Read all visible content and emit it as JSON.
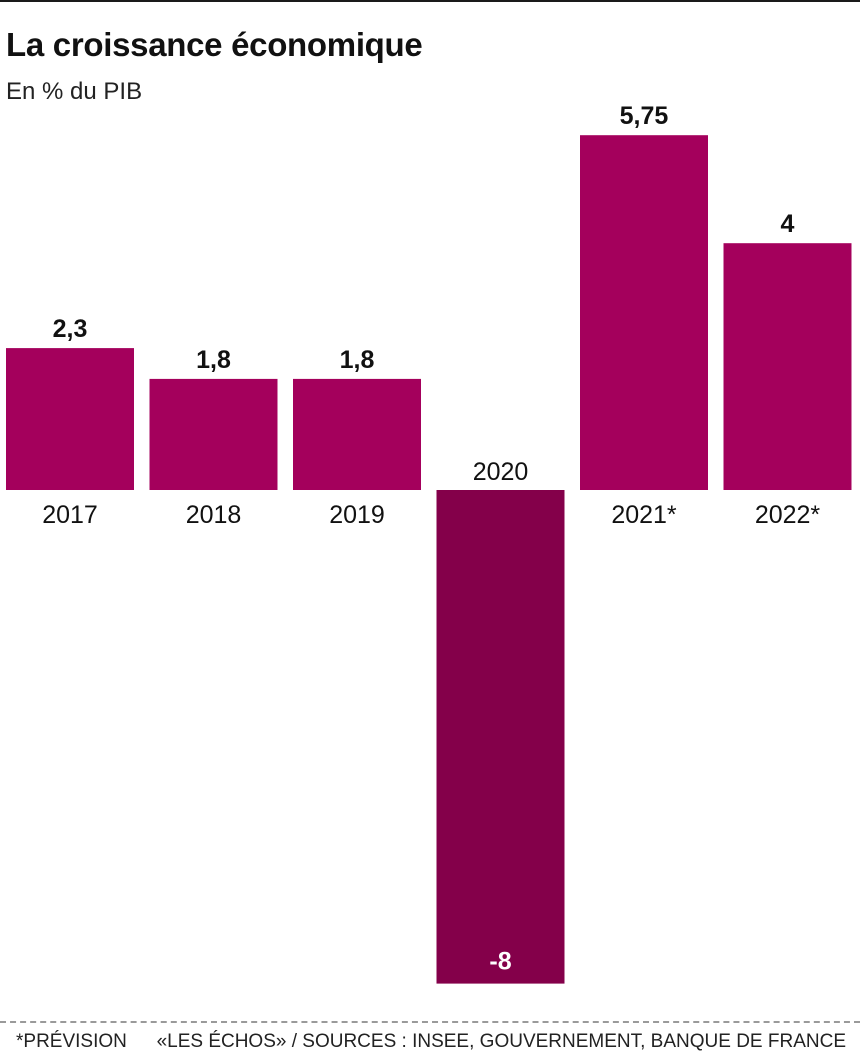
{
  "header": {
    "title": "La croissance économique",
    "subtitle": "En % du PIB"
  },
  "footer": {
    "footnote": "*PRÉVISION",
    "source": "«LES ÉCHOS» / SOURCES : INSEE, GOUVERNEMENT, BANQUE DE FRANCE"
  },
  "colors": {
    "bar": "#a4005c",
    "bar_negative": "#84004a",
    "text": "#111111",
    "negative_label": "#ffffff"
  },
  "chart_data": {
    "type": "bar",
    "title": "La croissance économique",
    "subtitle": "En % du PIB",
    "categories": [
      "2017",
      "2018",
      "2019",
      "2020",
      "2021*",
      "2022*"
    ],
    "values": [
      2.3,
      1.8,
      1.8,
      -8,
      5.75,
      4
    ],
    "value_labels": [
      "2,3",
      "1,8",
      "1,8",
      "-8",
      "5,75",
      "4"
    ],
    "xlabel": "",
    "ylabel": "",
    "ylim": [
      -8,
      5.75
    ],
    "grid": false,
    "legend": "none"
  }
}
